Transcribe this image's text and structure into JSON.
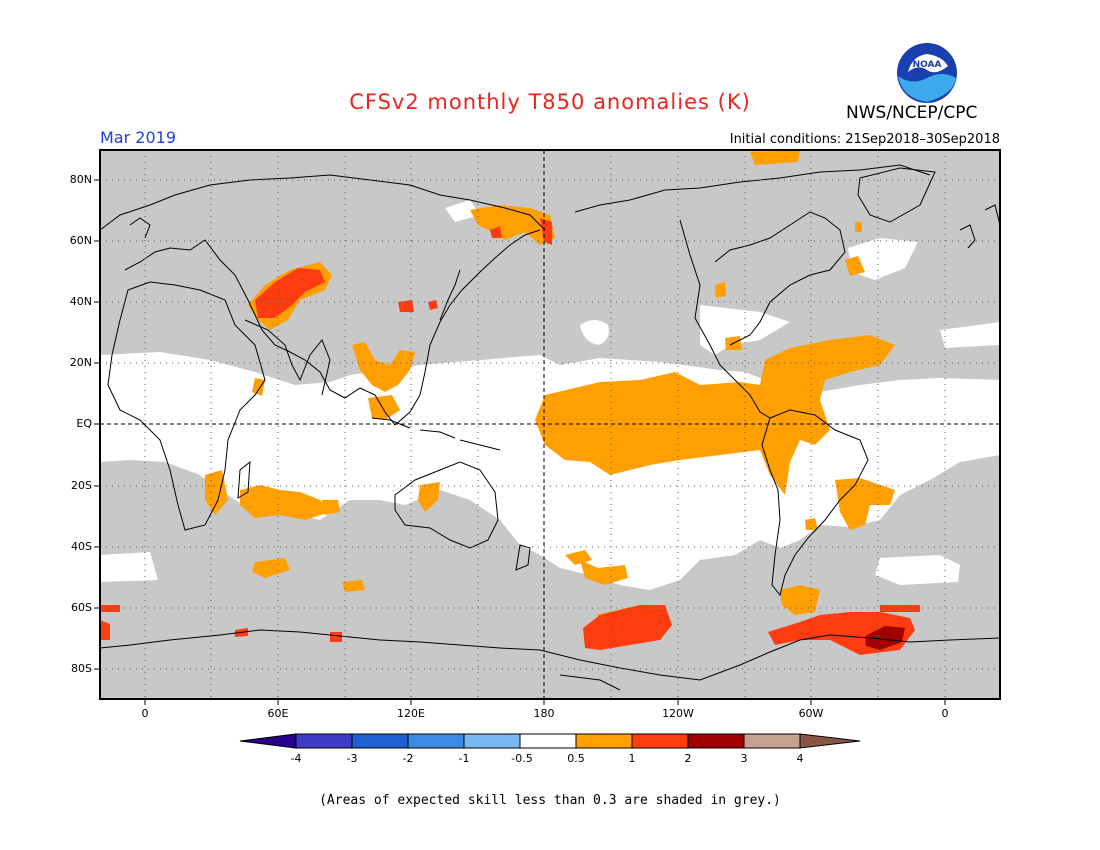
{
  "header": {
    "title": "CFSv2 monthly T850 anomalies (K)",
    "org": "NWS/NCEP/CPC",
    "logo_text": "NOAA",
    "month": "Mar 2019",
    "initial_conditions": "Initial conditions: 21Sep2018–30Sep2018"
  },
  "axes": {
    "lat_labels": [
      "80N",
      "60N",
      "40N",
      "20N",
      "EQ",
      "20S",
      "40S",
      "60S",
      "80S"
    ],
    "lon_labels": [
      "0",
      "60E",
      "120E",
      "180",
      "120W",
      "60W",
      "0"
    ]
  },
  "colorbar": {
    "labels": [
      "-4",
      "-3",
      "-2",
      "-1",
      "-0.5",
      "0.5",
      "1",
      "2",
      "3",
      "4"
    ],
    "colors": [
      "#24008c",
      "#3d3dc8",
      "#1e5fd2",
      "#3a8be6",
      "#78b8f0",
      "#ffffff",
      "#ff9f00",
      "#ff3c10",
      "#a00000",
      "#c8a090",
      "#8a5545"
    ]
  },
  "legend_note": "(Areas of expected skill less than 0.3 are shaded in grey.)",
  "map_colors": {
    "grey_mask": "#c8c8c8",
    "neutral": "#ffffff",
    "warm_1": "#ff9f00",
    "warm_2": "#ff3c10",
    "warm_3": "#a00000"
  }
}
